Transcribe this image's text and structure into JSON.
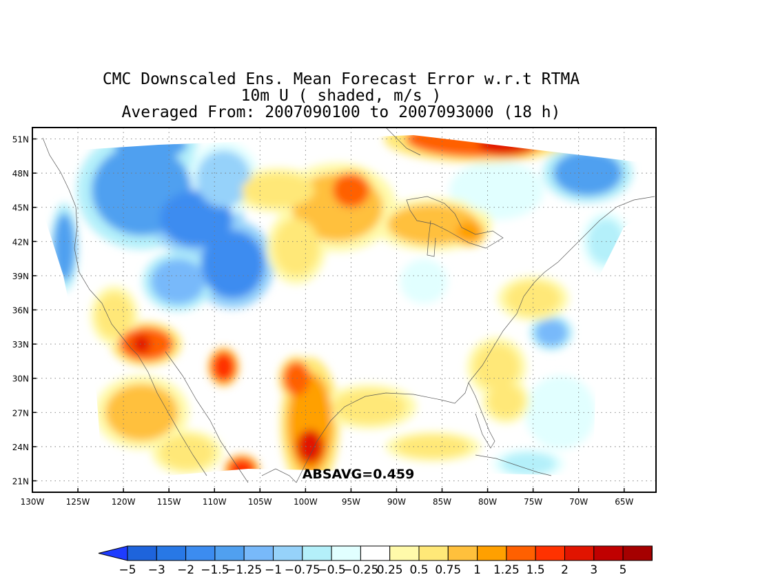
{
  "title": {
    "line1": "CMC Downscaled Ens. Mean Forecast Error w.r.t RTMA",
    "line2": "10m U ( shaded, m/s )",
    "line3": "Averaged From: 2007090100 to 2007093000 (18 h)"
  },
  "map": {
    "lat_ticks": [
      "51N",
      "48N",
      "45N",
      "42N",
      "39N",
      "36N",
      "33N",
      "30N",
      "27N",
      "24N",
      "21N"
    ],
    "lon_ticks": [
      "130W",
      "125W",
      "120W",
      "115W",
      "110W",
      "105W",
      "100W",
      "95W",
      "90W",
      "85W",
      "80W",
      "75W",
      "70W",
      "65W"
    ],
    "lat_range": [
      20,
      52
    ],
    "lon_range": [
      -130,
      -61.5
    ],
    "grid": "dotted",
    "annotation": "ABSAVG=0.459"
  },
  "colorbar": {
    "labels": [
      "−5",
      "−3",
      "−2",
      "−1.5",
      "−1.25",
      "−1",
      "−0.75",
      "−0.5",
      "−0.25",
      "0.25",
      "0.5",
      "0.75",
      "1",
      "1.25",
      "1.5",
      "2",
      "3",
      "5"
    ],
    "colors": [
      "#1e64dc",
      "#2878e6",
      "#3c8cf0",
      "#50a0f0",
      "#78b9fa",
      "#96d2fa",
      "#b4f0fa",
      "#e1ffff",
      "#ffffff",
      "#fffaaa",
      "#ffe878",
      "#ffc03c",
      "#ffa000",
      "#ff6000",
      "#ff3200",
      "#e11400",
      "#c00000",
      "#a50000"
    ],
    "under_color": "#1e3cff",
    "over_color": "#7d0000"
  },
  "field_blobs": [
    {
      "lon": -118,
      "lat": 46.5,
      "rx": 5.5,
      "ry": 4,
      "level": -1.5
    },
    {
      "lon": -112,
      "lat": 44,
      "rx": 4,
      "ry": 2.5,
      "level": -2
    },
    {
      "lon": -108,
      "lat": 40,
      "rx": 3.5,
      "ry": 3,
      "level": -2
    },
    {
      "lon": -114,
      "lat": 38.5,
      "rx": 3,
      "ry": 2,
      "level": -1.25
    },
    {
      "lon": -117,
      "lat": 50.5,
      "rx": 4,
      "ry": 1.3,
      "level": -1.5
    },
    {
      "lon": -126.5,
      "lat": 41.5,
      "rx": 1.2,
      "ry": 3,
      "level": -1.5
    },
    {
      "lon": -109,
      "lat": 47.5,
      "rx": 3,
      "ry": 2.5,
      "level": -1
    },
    {
      "lon": -79,
      "lat": 46.5,
      "rx": 4,
      "ry": 2,
      "level": -0.5
    },
    {
      "lon": -69,
      "lat": 48,
      "rx": 3.8,
      "ry": 2,
      "level": -1.5
    },
    {
      "lon": -73,
      "lat": 34,
      "rx": 1.8,
      "ry": 1.2,
      "level": -1.25
    },
    {
      "lon": -75.5,
      "lat": 22.5,
      "rx": 3,
      "ry": 1,
      "level": -0.75
    },
    {
      "lon": -67,
      "lat": 42,
      "rx": 2,
      "ry": 2,
      "level": -0.75
    },
    {
      "lon": -72,
      "lat": 27,
      "rx": 3,
      "ry": 2.5,
      "level": -0.5
    },
    {
      "lon": -87,
      "lat": 38.5,
      "rx": 2,
      "ry": 1.5,
      "level": -0.5
    },
    {
      "lon": -96.5,
      "lat": 45,
      "rx": 5,
      "ry": 3,
      "level": 0.75
    },
    {
      "lon": -95,
      "lat": 46.5,
      "rx": 2,
      "ry": 1.5,
      "level": 1.25
    },
    {
      "lon": -81,
      "lat": 51,
      "rx": 8,
      "ry": 1.6,
      "level": 1.25
    },
    {
      "lon": -78,
      "lat": 50.6,
      "rx": 3,
      "ry": 1,
      "level": 2
    },
    {
      "lon": -99.5,
      "lat": 26,
      "rx": 2.5,
      "ry": 4.5,
      "level": 1
    },
    {
      "lon": -99.5,
      "lat": 24,
      "rx": 1.5,
      "ry": 1.5,
      "level": 2
    },
    {
      "lon": -101,
      "lat": 30,
      "rx": 1.5,
      "ry": 1.5,
      "level": 1.25
    },
    {
      "lon": -117.5,
      "lat": 33,
      "rx": 3,
      "ry": 1.5,
      "level": 1.25
    },
    {
      "lon": -118,
      "lat": 33,
      "rx": 1,
      "ry": 0.8,
      "level": 2
    },
    {
      "lon": -109,
      "lat": 31,
      "rx": 1.3,
      "ry": 1.3,
      "level": 1.5
    },
    {
      "lon": -107,
      "lat": 22,
      "rx": 1.5,
      "ry": 1,
      "level": 1.5
    },
    {
      "lon": -118,
      "lat": 27,
      "rx": 4,
      "ry": 2.5,
      "level": 0.75
    },
    {
      "lon": -121,
      "lat": 35.5,
      "rx": 2,
      "ry": 2,
      "level": 0.5
    },
    {
      "lon": -86,
      "lat": 43.5,
      "rx": 5,
      "ry": 1.8,
      "level": 0.75
    },
    {
      "lon": -82,
      "lat": 42.8,
      "rx": 1.5,
      "ry": 1,
      "level": 1
    },
    {
      "lon": -101,
      "lat": 41.5,
      "rx": 2.5,
      "ry": 2.5,
      "level": 0.5
    },
    {
      "lon": -93,
      "lat": 27.5,
      "rx": 4,
      "ry": 1.5,
      "level": 0.5
    },
    {
      "lon": -86,
      "lat": 24,
      "rx": 4,
      "ry": 1,
      "level": 0.5
    },
    {
      "lon": -79,
      "lat": 31,
      "rx": 2.5,
      "ry": 2,
      "level": 0.5
    },
    {
      "lon": -78,
      "lat": 28,
      "rx": 2,
      "ry": 1.5,
      "level": 0.5
    },
    {
      "lon": -113,
      "lat": 23.5,
      "rx": 3,
      "ry": 1.5,
      "level": 0.5
    },
    {
      "lon": -103,
      "lat": 46.5,
      "rx": 4,
      "ry": 1.5,
      "level": 0.5
    },
    {
      "lon": -75,
      "lat": 37,
      "rx": 3,
      "ry": 1.5,
      "level": 0.5
    }
  ]
}
